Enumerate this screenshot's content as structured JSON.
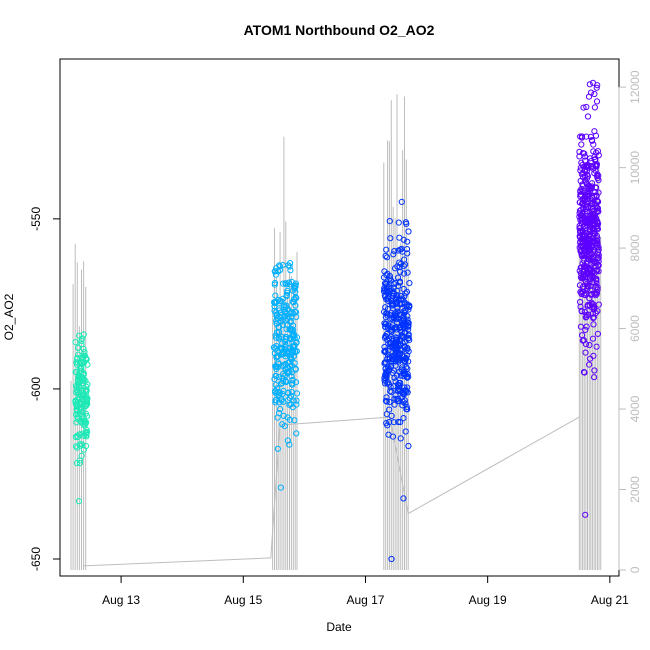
{
  "chart_data": {
    "type": "scatter",
    "title": "ATOM1 Northbound O2_AO2",
    "xlabel": "Date",
    "ylabel": "O2_AO2",
    "x_range_days": [
      12.0,
      21.15
    ],
    "x_ticks": [
      {
        "label": "Aug 13",
        "day": 13
      },
      {
        "label": "Aug 15",
        "day": 15
      },
      {
        "label": "Aug 17",
        "day": 17
      },
      {
        "label": "Aug 19",
        "day": 19
      },
      {
        "label": "Aug 21",
        "day": 21
      }
    ],
    "ylim": [
      -655,
      -503
    ],
    "y_ticks": [
      -650,
      -600,
      -550
    ],
    "y2lim": [
      -150,
      12700
    ],
    "y2_ticks": [
      0,
      2000,
      4000,
      6000,
      8000,
      10000,
      12000
    ],
    "grid": false,
    "series": [
      {
        "color": "#1de9b6",
        "x_range": [
          12.25,
          12.45
        ],
        "y_center": -602,
        "y_spread": 8,
        "y_min": -633,
        "y_max": -584,
        "points": 160
      },
      {
        "color": "#00b0ff",
        "x_range": [
          15.5,
          15.88
        ],
        "y_center": -586,
        "y_spread": 11,
        "y_min": -629,
        "y_max": -563,
        "points": 260
      },
      {
        "color": "#0033ff",
        "x_range": [
          17.3,
          17.72
        ],
        "y_center": -584,
        "y_spread": 13,
        "y_min": -650,
        "y_max": -545,
        "points": 380
      },
      {
        "color": "#5c00ff",
        "x_range": [
          20.5,
          20.82
        ],
        "y_center": -553,
        "y_spread": 16,
        "y_min": -637,
        "y_max": -510,
        "points": 460
      }
    ],
    "gray_line": {
      "color": "#bdbdbd",
      "segments": [
        {
          "x": 12.38,
          "y2": 100
        },
        {
          "x": 15.45,
          "y2": 300
        },
        {
          "x": 15.6,
          "y2": 3600
        },
        {
          "x": 17.4,
          "y2": 3800
        },
        {
          "x": 17.7,
          "y2": 1400
        },
        {
          "x": 20.5,
          "y2": 3800
        }
      ],
      "spikes": [
        {
          "x_range": [
            12.18,
            12.42
          ],
          "y2_max": 8300,
          "count": 8
        },
        {
          "x_range": [
            15.48,
            15.88
          ],
          "y2_max": 11000,
          "count": 14
        },
        {
          "x_range": [
            17.3,
            17.7
          ],
          "y2_max": 12000,
          "count": 14
        },
        {
          "x_range": [
            20.5,
            20.85
          ],
          "y2_max": 11700,
          "count": 14
        }
      ]
    }
  }
}
